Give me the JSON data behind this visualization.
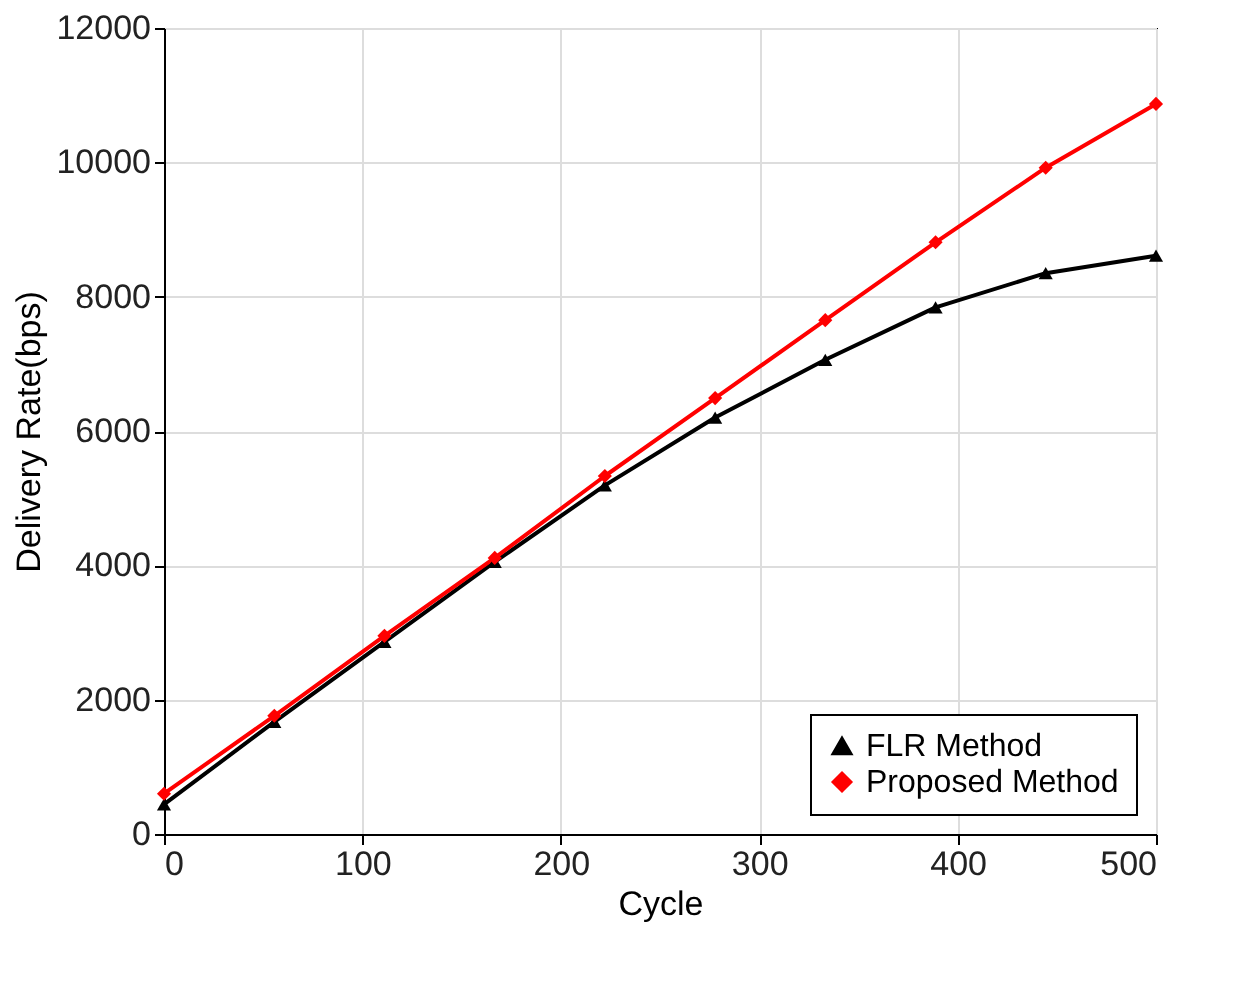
{
  "chart_data": {
    "type": "line",
    "xlabel": "Cycle",
    "ylabel": "Delivery Rate(bps)",
    "x": [
      0,
      55.6,
      111.1,
      166.7,
      222.2,
      277.8,
      333.3,
      388.9,
      444.4,
      500
    ],
    "series": [
      {
        "name": "FLR Method",
        "color": "#000000",
        "marker": "triangle",
        "values": [
          440,
          1670,
          2860,
          4050,
          5190,
          6200,
          7060,
          7840,
          8350,
          8610
        ]
      },
      {
        "name": "Proposed Method",
        "color": "#ff0000",
        "marker": "diamond",
        "values": [
          600,
          1760,
          2950,
          4110,
          5330,
          6490,
          7650,
          8810,
          9920,
          10870
        ]
      }
    ],
    "xlim": [
      0,
      500
    ],
    "xticks": [
      0,
      100,
      200,
      300,
      400,
      500
    ],
    "ylim": [
      0,
      12000
    ],
    "yticks": [
      0,
      2000,
      4000,
      6000,
      8000,
      10000,
      12000
    ],
    "grid": true,
    "legend": "bottom right",
    "line_style": "solid"
  }
}
